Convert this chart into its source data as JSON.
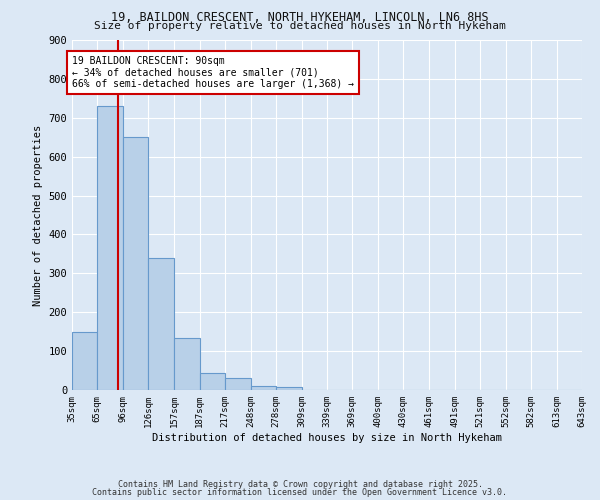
{
  "title1": "19, BAILDON CRESCENT, NORTH HYKEHAM, LINCOLN, LN6 8HS",
  "title2": "Size of property relative to detached houses in North Hykeham",
  "xlabel": "Distribution of detached houses by size in North Hykeham",
  "ylabel": "Number of detached properties",
  "bin_edges": [
    35,
    65,
    96,
    126,
    157,
    187,
    217,
    248,
    278,
    309,
    339,
    369,
    400,
    430,
    461,
    491,
    521,
    552,
    582,
    613,
    643
  ],
  "bin_labels": [
    "35sqm",
    "65sqm",
    "96sqm",
    "126sqm",
    "157sqm",
    "187sqm",
    "217sqm",
    "248sqm",
    "278sqm",
    "309sqm",
    "339sqm",
    "369sqm",
    "400sqm",
    "430sqm",
    "461sqm",
    "491sqm",
    "521sqm",
    "552sqm",
    "582sqm",
    "613sqm",
    "643sqm"
  ],
  "bar_heights": [
    150,
    730,
    650,
    340,
    135,
    45,
    30,
    10,
    7,
    0,
    0,
    0,
    0,
    0,
    0,
    0,
    0,
    0,
    0,
    0
  ],
  "bar_color": "#b8d0e8",
  "bar_edge_color": "#6699cc",
  "property_size": 90,
  "redline_color": "#cc0000",
  "annotation_text": "19 BAILDON CRESCENT: 90sqm\n← 34% of detached houses are smaller (701)\n66% of semi-detached houses are larger (1,368) →",
  "annotation_box_color": "#ffffff",
  "annotation_box_edge": "#cc0000",
  "ylim": [
    0,
    900
  ],
  "yticks": [
    0,
    100,
    200,
    300,
    400,
    500,
    600,
    700,
    800,
    900
  ],
  "bg_color": "#dce8f5",
  "grid_color": "#ffffff",
  "footer1": "Contains HM Land Registry data © Crown copyright and database right 2025.",
  "footer2": "Contains public sector information licensed under the Open Government Licence v3.0."
}
